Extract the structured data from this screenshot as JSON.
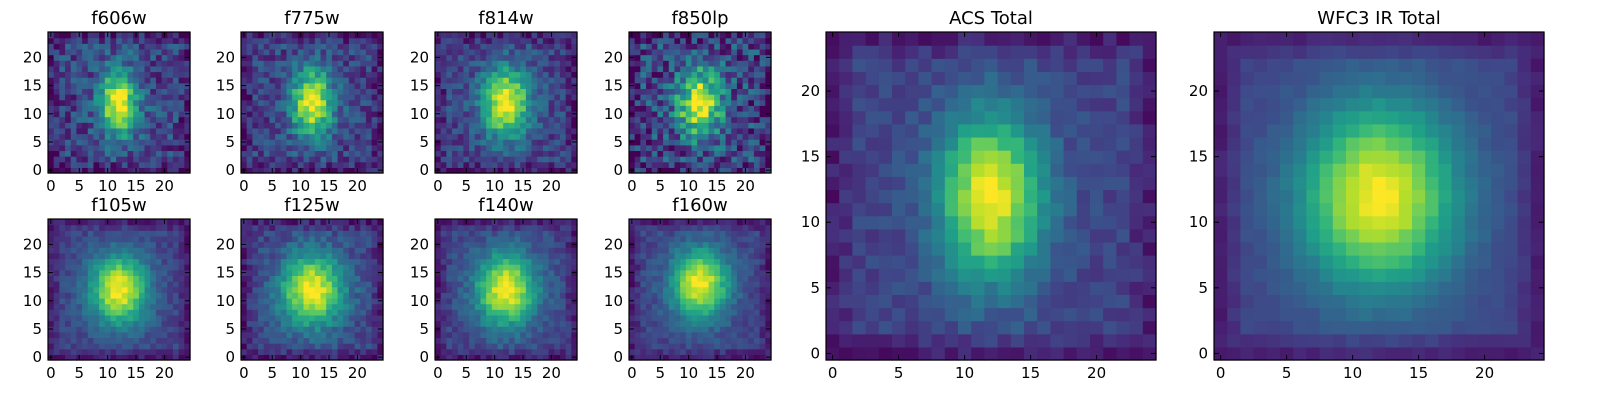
{
  "figure": {
    "layout": "two rows of four small panels on the left, two large panels on the right"
  },
  "chart_data": [
    {
      "type": "heatmap",
      "title": "f606w",
      "grid": [
        25,
        25
      ],
      "xlim": [
        0,
        24
      ],
      "ylim": [
        0,
        24
      ],
      "xticks": [
        0,
        5,
        10,
        15,
        20
      ],
      "yticks": [
        0,
        5,
        10,
        15,
        20
      ],
      "xtick_labels": [
        "0",
        "5",
        "10",
        "15",
        "20"
      ],
      "ytick_labels": [
        "0",
        "5",
        "10",
        "15",
        "20"
      ],
      "colormap": "viridis",
      "peak": {
        "x": 12,
        "y": 12
      },
      "spread": {
        "sx": 2.4,
        "sy": 4.2
      },
      "noise": 0.32,
      "seed": 11
    },
    {
      "type": "heatmap",
      "title": "f775w",
      "grid": [
        25,
        25
      ],
      "xlim": [
        0,
        24
      ],
      "ylim": [
        0,
        24
      ],
      "xticks": [
        0,
        5,
        10,
        15,
        20
      ],
      "yticks": [
        0,
        5,
        10,
        15,
        20
      ],
      "xtick_labels": [
        "0",
        "5",
        "10",
        "15",
        "20"
      ],
      "ytick_labels": [
        "0",
        "5",
        "10",
        "15",
        "20"
      ],
      "colormap": "viridis",
      "peak": {
        "x": 12,
        "y": 12
      },
      "spread": {
        "sx": 2.6,
        "sy": 4.3
      },
      "noise": 0.28,
      "seed": 23
    },
    {
      "type": "heatmap",
      "title": "f814w",
      "grid": [
        25,
        25
      ],
      "xlim": [
        0,
        24
      ],
      "ylim": [
        0,
        24
      ],
      "xticks": [
        0,
        5,
        10,
        15,
        20
      ],
      "yticks": [
        0,
        5,
        10,
        15,
        20
      ],
      "xtick_labels": [
        "0",
        "5",
        "10",
        "15",
        "20"
      ],
      "ytick_labels": [
        "0",
        "5",
        "10",
        "15",
        "20"
      ],
      "colormap": "viridis",
      "peak": {
        "x": 12,
        "y": 12
      },
      "spread": {
        "sx": 3.0,
        "sy": 4.4
      },
      "noise": 0.25,
      "seed": 37
    },
    {
      "type": "heatmap",
      "title": "f850lp",
      "grid": [
        25,
        25
      ],
      "xlim": [
        0,
        24
      ],
      "ylim": [
        0,
        24
      ],
      "xticks": [
        0,
        5,
        10,
        15,
        20
      ],
      "yticks": [
        0,
        5,
        10,
        15,
        20
      ],
      "xtick_labels": [
        "0",
        "5",
        "10",
        "15",
        "20"
      ],
      "ytick_labels": [
        "0",
        "5",
        "10",
        "15",
        "20"
      ],
      "colormap": "viridis",
      "peak": {
        "x": 12,
        "y": 12
      },
      "spread": {
        "sx": 2.8,
        "sy": 4.2
      },
      "noise": 0.45,
      "seed": 41
    },
    {
      "type": "heatmap",
      "title": "f105w",
      "grid": [
        25,
        25
      ],
      "xlim": [
        0,
        24
      ],
      "ylim": [
        0,
        24
      ],
      "xticks": [
        0,
        5,
        10,
        15,
        20
      ],
      "yticks": [
        0,
        5,
        10,
        15,
        20
      ],
      "xtick_labels": [
        "0",
        "5",
        "10",
        "15",
        "20"
      ],
      "ytick_labels": [
        "0",
        "5",
        "10",
        "15",
        "20"
      ],
      "colormap": "viridis",
      "peak": {
        "x": 12,
        "y": 12
      },
      "spread": {
        "sx": 3.6,
        "sy": 4.4
      },
      "noise": 0.14,
      "seed": 53
    },
    {
      "type": "heatmap",
      "title": "f125w",
      "grid": [
        25,
        25
      ],
      "xlim": [
        0,
        24
      ],
      "ylim": [
        0,
        24
      ],
      "xticks": [
        0,
        5,
        10,
        15,
        20
      ],
      "yticks": [
        0,
        5,
        10,
        15,
        20
      ],
      "xtick_labels": [
        "0",
        "5",
        "10",
        "15",
        "20"
      ],
      "ytick_labels": [
        "0",
        "5",
        "10",
        "15",
        "20"
      ],
      "colormap": "viridis",
      "peak": {
        "x": 12,
        "y": 12
      },
      "spread": {
        "sx": 4.0,
        "sy": 4.6
      },
      "noise": 0.18,
      "seed": 67
    },
    {
      "type": "heatmap",
      "title": "f140w",
      "grid": [
        25,
        25
      ],
      "xlim": [
        0,
        24
      ],
      "ylim": [
        0,
        24
      ],
      "xticks": [
        0,
        5,
        10,
        15,
        20
      ],
      "yticks": [
        0,
        5,
        10,
        15,
        20
      ],
      "xtick_labels": [
        "0",
        "5",
        "10",
        "15",
        "20"
      ],
      "ytick_labels": [
        "0",
        "5",
        "10",
        "15",
        "20"
      ],
      "colormap": "viridis",
      "peak": {
        "x": 12,
        "y": 12
      },
      "spread": {
        "sx": 3.8,
        "sy": 4.6
      },
      "noise": 0.16,
      "seed": 79
    },
    {
      "type": "heatmap",
      "title": "f160w",
      "grid": [
        25,
        25
      ],
      "xlim": [
        0,
        24
      ],
      "ylim": [
        0,
        24
      ],
      "xticks": [
        0,
        5,
        10,
        15,
        20
      ],
      "yticks": [
        0,
        5,
        10,
        15,
        20
      ],
      "xtick_labels": [
        "0",
        "5",
        "10",
        "15",
        "20"
      ],
      "ytick_labels": [
        "0",
        "5",
        "10",
        "15",
        "20"
      ],
      "colormap": "viridis",
      "peak": {
        "x": 12,
        "y": 13
      },
      "spread": {
        "sx": 3.6,
        "sy": 4.4
      },
      "noise": 0.14,
      "seed": 83
    },
    {
      "type": "heatmap",
      "title": "ACS Total",
      "grid": [
        25,
        25
      ],
      "xlim": [
        0,
        24
      ],
      "ylim": [
        0,
        24
      ],
      "xticks": [
        0,
        5,
        10,
        15,
        20
      ],
      "yticks": [
        0,
        5,
        10,
        15,
        20
      ],
      "xtick_labels": [
        "0",
        "5",
        "10",
        "15",
        "20"
      ],
      "ytick_labels": [
        "0",
        "5",
        "10",
        "15",
        "20"
      ],
      "colormap": "viridis",
      "peak": {
        "x": 12,
        "y": 12
      },
      "spread": {
        "sx": 2.8,
        "sy": 4.5
      },
      "noise": 0.12,
      "seed": 97
    },
    {
      "type": "heatmap",
      "title": "WFC3 IR Total",
      "grid": [
        25,
        25
      ],
      "xlim": [
        0,
        24
      ],
      "ylim": [
        0,
        24
      ],
      "xticks": [
        0,
        5,
        10,
        15,
        20
      ],
      "yticks": [
        0,
        5,
        10,
        15,
        20
      ],
      "xtick_labels": [
        "0",
        "5",
        "10",
        "15",
        "20"
      ],
      "ytick_labels": [
        "0",
        "5",
        "10",
        "15",
        "20"
      ],
      "colormap": "viridis",
      "peak": {
        "x": 12,
        "y": 12
      },
      "spread": {
        "sx": 4.2,
        "sy": 5.0
      },
      "noise": 0.05,
      "seed": 101
    }
  ]
}
